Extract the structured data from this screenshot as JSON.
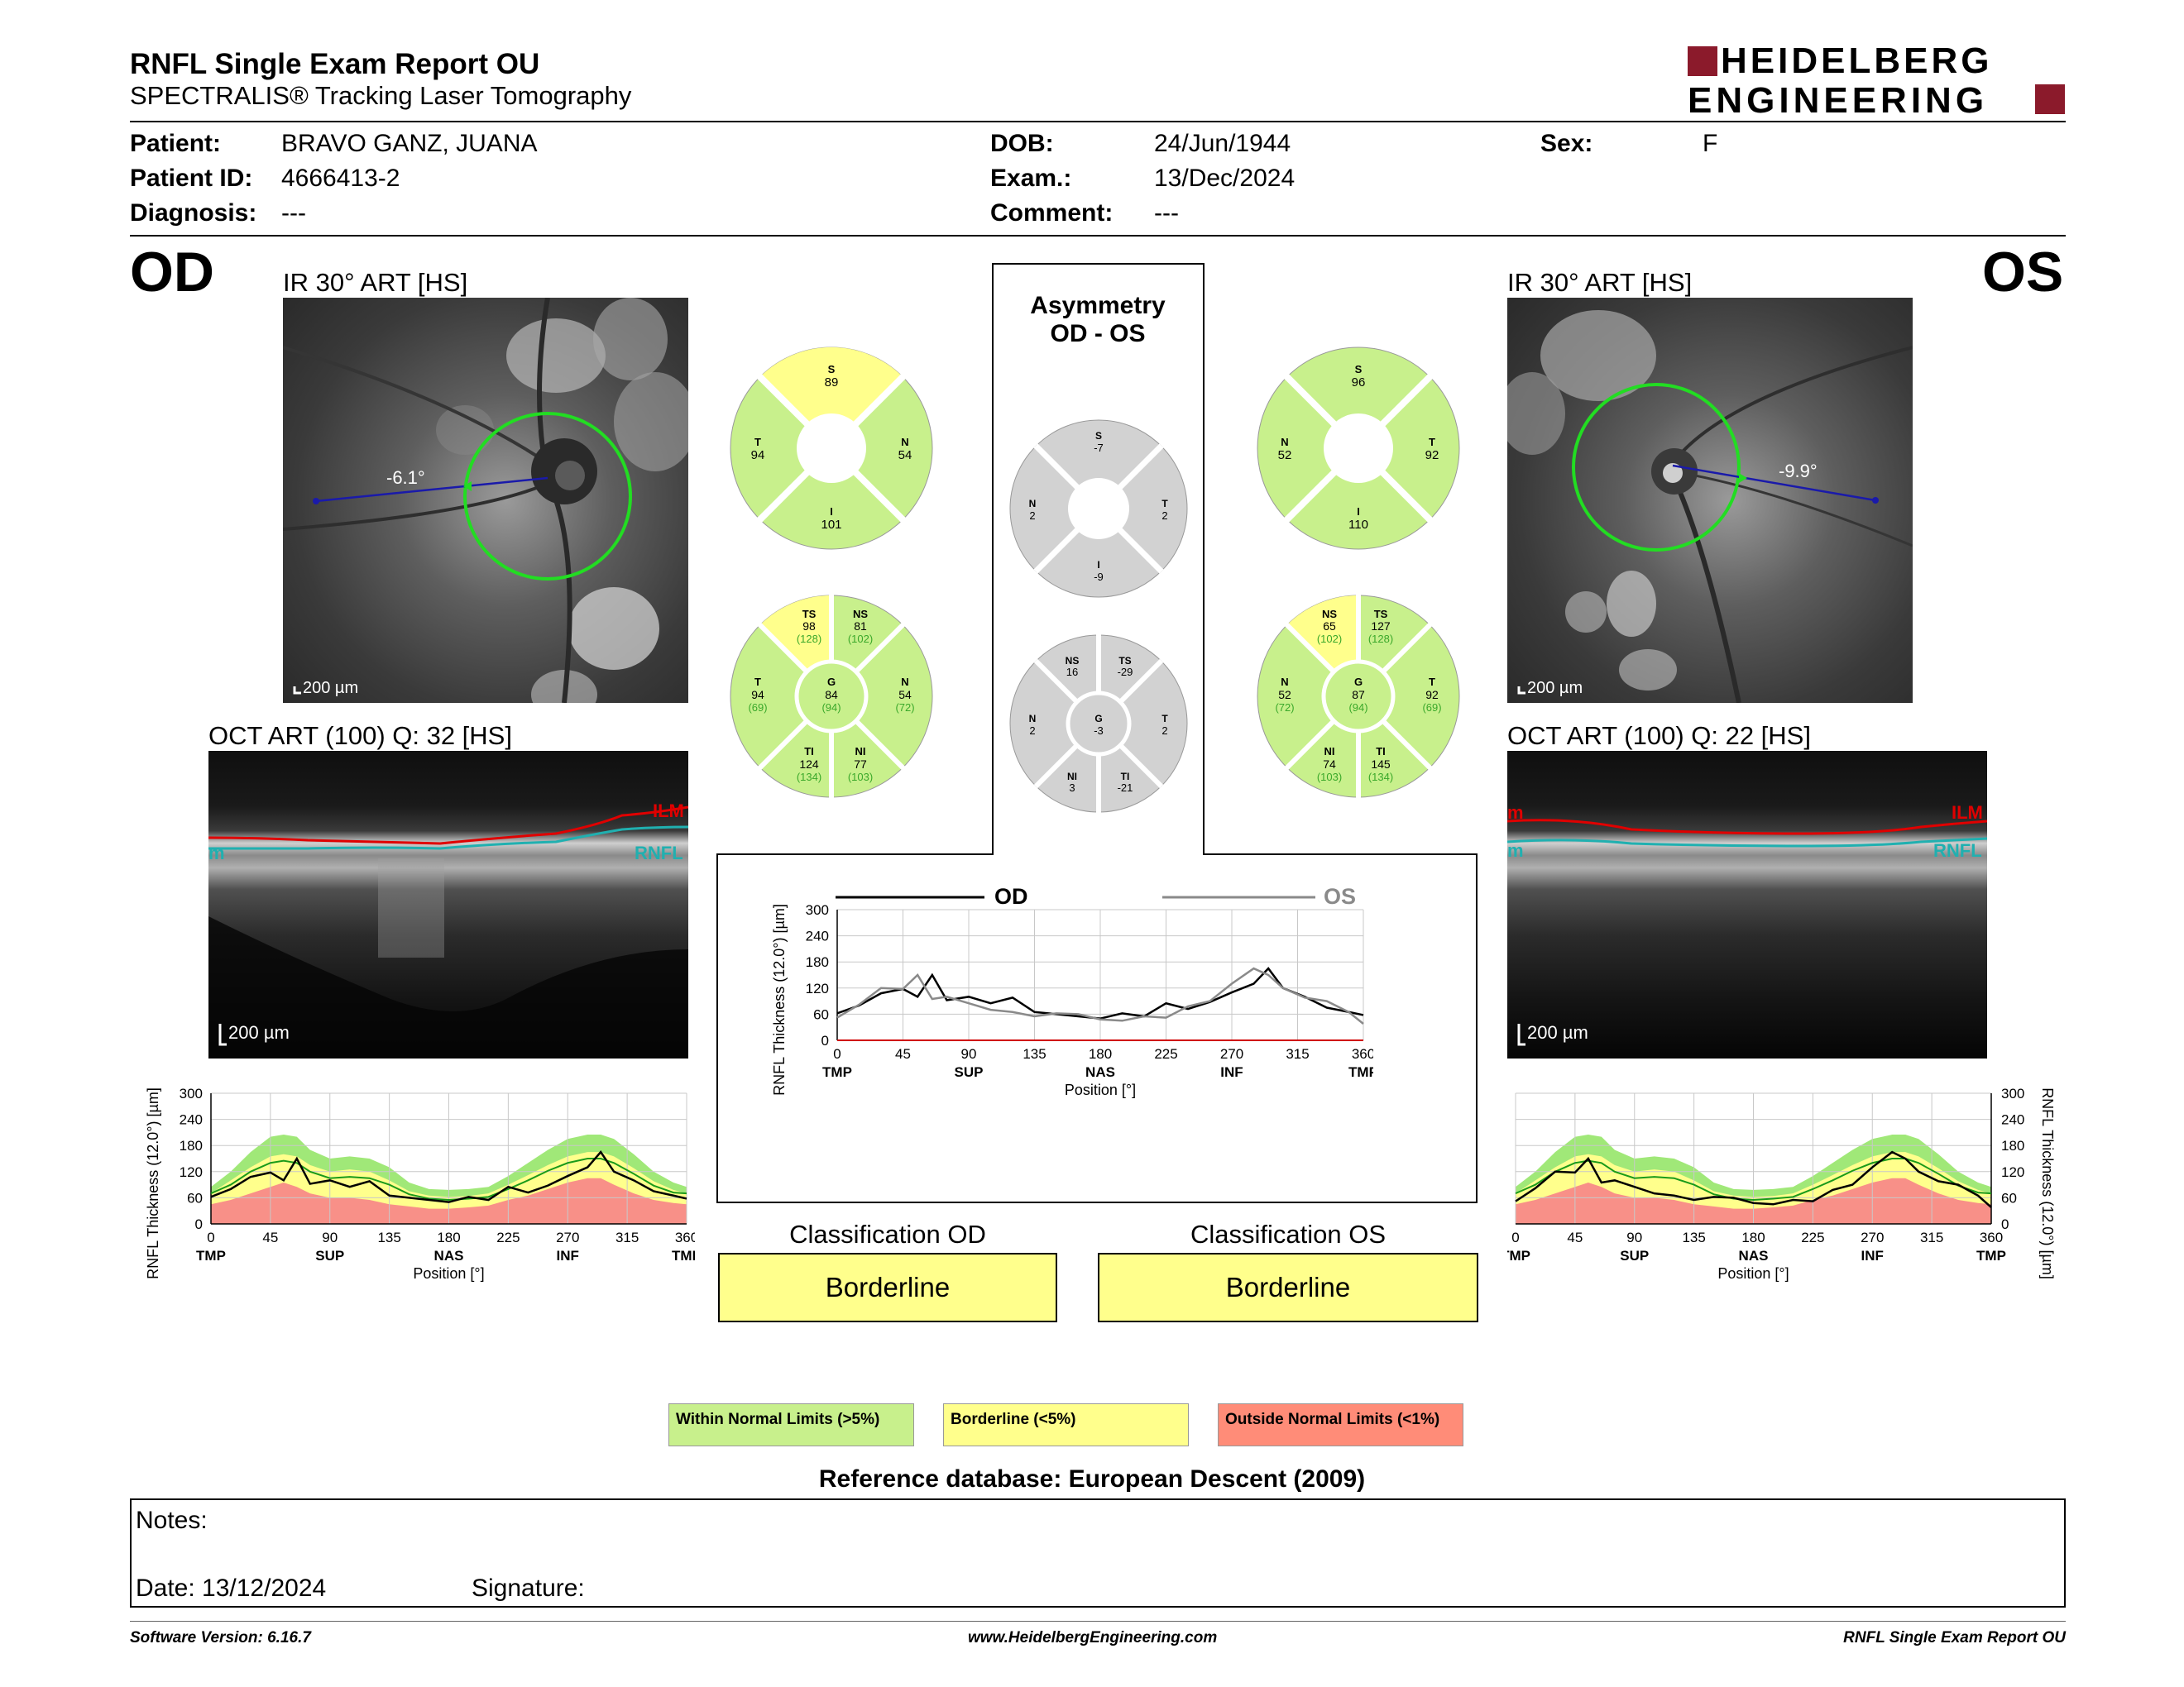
{
  "report": {
    "title": "RNFL Single Exam Report OU",
    "subtitle": "SPECTRALIS® Tracking Laser Tomography",
    "logo_line1": "HEIDELBERG",
    "logo_line2": "ENGINEERING",
    "brand_color": "#8b1a2b"
  },
  "patient": {
    "name_label": "Patient:",
    "name": "BRAVO GANZ, JUANA",
    "id_label": "Patient ID:",
    "id": "4666413-2",
    "diagnosis_label": "Diagnosis:",
    "diagnosis": "---",
    "dob_label": "DOB:",
    "dob": "24/Jun/1944",
    "exam_label": "Exam.:",
    "exam": "13/Dec/2024",
    "comment_label": "Comment:",
    "comment": "---",
    "sex_label": "Sex:",
    "sex": "F"
  },
  "od": {
    "eye": "OD",
    "ir_label": "IR 30° ART [HS]",
    "angle": "-6.1°",
    "ir_scale": "200 µm",
    "oct_label": "OCT ART (100) Q: 32 [HS]",
    "oct_scale": "200 µm",
    "ilm": "ILM",
    "rnfl": "RNFL",
    "rnfl_cut": "m",
    "sectors4": {
      "S": {
        "label": "S",
        "value": "89"
      },
      "T": {
        "label": "T",
        "value": "94"
      },
      "N": {
        "label": "N",
        "value": "54"
      },
      "I": {
        "label": "I",
        "value": "101"
      }
    },
    "sectors6": {
      "TS": {
        "label": "TS",
        "value": "98",
        "ref": "(128)"
      },
      "NS": {
        "label": "NS",
        "value": "81",
        "ref": "(102)"
      },
      "T": {
        "label": "T",
        "value": "94",
        "ref": "(69)"
      },
      "G": {
        "label": "G",
        "value": "84",
        "ref": "(94)"
      },
      "N": {
        "label": "N",
        "value": "54",
        "ref": "(72)"
      },
      "TI": {
        "label": "TI",
        "value": "124",
        "ref": "(134)"
      },
      "NI": {
        "label": "NI",
        "value": "77",
        "ref": "(103)"
      }
    },
    "classification_title": "Classification OD",
    "classification": "Borderline"
  },
  "os": {
    "eye": "OS",
    "ir_label": "IR 30° ART [HS]",
    "angle": "-9.9°",
    "ir_scale": "200 µm",
    "oct_label": "OCT ART (100) Q: 22 [HS]",
    "oct_scale": "200 µm",
    "ilm": "ILM",
    "rnfl": "RNFL",
    "ilm_cut": "m",
    "rnfl_cut": "m",
    "sectors4": {
      "S": {
        "label": "S",
        "value": "96"
      },
      "N": {
        "label": "N",
        "value": "52"
      },
      "T": {
        "label": "T",
        "value": "92"
      },
      "I": {
        "label": "I",
        "value": "110"
      }
    },
    "sectors6": {
      "NS": {
        "label": "NS",
        "value": "65",
        "ref": "(102)"
      },
      "TS": {
        "label": "TS",
        "value": "127",
        "ref": "(128)"
      },
      "N": {
        "label": "N",
        "value": "52",
        "ref": "(72)"
      },
      "G": {
        "label": "G",
        "value": "87",
        "ref": "(94)"
      },
      "T": {
        "label": "T",
        "value": "92",
        "ref": "(69)"
      },
      "NI": {
        "label": "NI",
        "value": "74",
        "ref": "(103)"
      },
      "TI": {
        "label": "TI",
        "value": "145",
        "ref": "(134)"
      }
    },
    "classification_title": "Classification OS",
    "classification": "Borderline"
  },
  "asymmetry": {
    "title_line1": "Asymmetry",
    "title_line2": "OD - OS",
    "sectors4": {
      "S": {
        "label": "S",
        "value": "-7"
      },
      "N": {
        "label": "N",
        "value": "2"
      },
      "T": {
        "label": "T",
        "value": "2"
      },
      "I": {
        "label": "I",
        "value": "-9"
      }
    },
    "sectors6": {
      "NS": {
        "label": "NS",
        "value": "16"
      },
      "TS": {
        "label": "TS",
        "value": "-29"
      },
      "N": {
        "label": "N",
        "value": "2"
      },
      "G": {
        "label": "G",
        "value": "-3"
      },
      "T": {
        "label": "T",
        "value": "2"
      },
      "NI": {
        "label": "NI",
        "value": "3"
      },
      "TI": {
        "label": "TI",
        "value": "-21"
      }
    }
  },
  "colors": {
    "normal": "#c8f08c",
    "borderline": "#ffff8c",
    "outside": "#ff8c78",
    "asym": "#d2d2d2",
    "od_line": "#000000",
    "os_line": "#8a8a8a",
    "band_green": "#a0e878",
    "band_red": "#f89088",
    "ilm_color": "#e00000",
    "rnfl_color": "#20b0b0",
    "circle": "#22dd22",
    "axis_line": "#1a1aaa"
  },
  "chart_data": [
    {
      "type": "line",
      "name": "od_profile",
      "xlabel": "Position [°]",
      "ylabel": "RNFL Thickness (12.0°) [µm]",
      "ylim": [
        0,
        300
      ],
      "xlim": [
        0,
        360
      ],
      "yticks": [
        0,
        60,
        120,
        180,
        240,
        300
      ],
      "xticks": [
        0,
        45,
        90,
        135,
        180,
        225,
        270,
        315,
        360
      ],
      "xsectors": [
        "TMP",
        "SUP",
        "NAS",
        "INF",
        "TMP"
      ],
      "grid": true,
      "x": [
        0,
        15,
        30,
        45,
        55,
        65,
        75,
        90,
        105,
        120,
        135,
        150,
        165,
        180,
        195,
        210,
        225,
        240,
        255,
        270,
        285,
        295,
        305,
        320,
        335,
        350,
        360
      ],
      "od": [
        62,
        80,
        108,
        118,
        100,
        150,
        92,
        100,
        85,
        98,
        65,
        60,
        55,
        50,
        62,
        55,
        85,
        72,
        88,
        110,
        130,
        165,
        120,
        100,
        75,
        65,
        58
      ],
      "normal_upper": [
        85,
        120,
        165,
        200,
        205,
        200,
        170,
        150,
        155,
        150,
        130,
        95,
        80,
        78,
        80,
        85,
        110,
        140,
        170,
        195,
        205,
        205,
        195,
        160,
        120,
        95,
        85
      ],
      "borderline_upper": [
        70,
        100,
        130,
        155,
        160,
        155,
        135,
        120,
        125,
        120,
        100,
        75,
        65,
        62,
        64,
        70,
        90,
        112,
        135,
        155,
        165,
        165,
        155,
        128,
        98,
        78,
        70
      ],
      "outside_upper": [
        45,
        55,
        70,
        85,
        95,
        85,
        70,
        60,
        60,
        55,
        45,
        40,
        35,
        35,
        38,
        42,
        55,
        65,
        80,
        95,
        105,
        105,
        90,
        70,
        55,
        48,
        45
      ],
      "mean": [
        70,
        90,
        120,
        140,
        145,
        140,
        120,
        105,
        108,
        105,
        90,
        68,
        58,
        55,
        58,
        62,
        80,
        100,
        122,
        140,
        150,
        150,
        140,
        115,
        88,
        72,
        70
      ]
    },
    {
      "type": "line",
      "name": "os_profile",
      "xlabel": "Position [°]",
      "ylabel": "RNFL Thickness (12.0°) [µm]",
      "ylim": [
        0,
        300
      ],
      "xlim": [
        0,
        360
      ],
      "yticks": [
        0,
        60,
        120,
        180,
        240,
        300
      ],
      "xticks": [
        0,
        45,
        90,
        135,
        180,
        225,
        270,
        315,
        360
      ],
      "xsectors": [
        "TMP",
        "SUP",
        "NAS",
        "INF",
        "TMP"
      ],
      "grid": true,
      "x": [
        0,
        15,
        30,
        45,
        55,
        65,
        75,
        90,
        105,
        120,
        135,
        150,
        165,
        180,
        195,
        210,
        225,
        240,
        255,
        270,
        285,
        295,
        305,
        320,
        335,
        350,
        360
      ],
      "os": [
        52,
        82,
        120,
        118,
        150,
        95,
        100,
        85,
        70,
        65,
        55,
        62,
        60,
        48,
        45,
        55,
        52,
        78,
        90,
        130,
        165,
        150,
        120,
        98,
        90,
        65,
        38
      ],
      "normal_upper": [
        85,
        120,
        165,
        200,
        205,
        200,
        170,
        150,
        155,
        150,
        130,
        95,
        80,
        78,
        80,
        85,
        110,
        140,
        170,
        195,
        205,
        205,
        195,
        160,
        120,
        95,
        85
      ],
      "borderline_upper": [
        70,
        100,
        130,
        155,
        160,
        155,
        135,
        120,
        125,
        120,
        100,
        75,
        65,
        62,
        64,
        70,
        90,
        112,
        135,
        155,
        165,
        165,
        155,
        128,
        98,
        78,
        70
      ],
      "outside_upper": [
        45,
        55,
        70,
        85,
        95,
        85,
        70,
        60,
        60,
        55,
        45,
        40,
        35,
        35,
        38,
        42,
        55,
        65,
        80,
        95,
        105,
        105,
        90,
        70,
        55,
        48,
        45
      ],
      "mean": [
        70,
        90,
        120,
        140,
        145,
        140,
        120,
        105,
        108,
        105,
        90,
        68,
        58,
        55,
        58,
        62,
        80,
        100,
        122,
        140,
        150,
        150,
        140,
        115,
        88,
        72,
        70
      ]
    },
    {
      "type": "line",
      "name": "asymmetry_profile",
      "xlabel": "Position [°]",
      "ylabel": "RNFL Thickness (12.0°) [µm]",
      "ylim": [
        0,
        300
      ],
      "xlim": [
        0,
        360
      ],
      "yticks": [
        0,
        60,
        120,
        180,
        240,
        300
      ],
      "xticks": [
        0,
        45,
        90,
        135,
        180,
        225,
        270,
        315,
        360
      ],
      "xsectors": [
        "TMP",
        "SUP",
        "NAS",
        "INF",
        "TMP"
      ],
      "grid": true,
      "legend": [
        "OD",
        "OS"
      ],
      "x": [
        0,
        15,
        30,
        45,
        55,
        65,
        75,
        90,
        105,
        120,
        135,
        150,
        165,
        180,
        195,
        210,
        225,
        240,
        255,
        270,
        285,
        295,
        305,
        320,
        335,
        350,
        360
      ],
      "series": [
        {
          "name": "OD",
          "values": [
            62,
            80,
            108,
            118,
            100,
            150,
            92,
            100,
            85,
            98,
            65,
            60,
            55,
            50,
            62,
            55,
            85,
            72,
            88,
            110,
            130,
            165,
            120,
            100,
            75,
            65,
            58
          ]
        },
        {
          "name": "OS",
          "values": [
            52,
            82,
            120,
            118,
            150,
            95,
            100,
            85,
            70,
            65,
            55,
            62,
            60,
            48,
            45,
            55,
            52,
            78,
            90,
            130,
            165,
            150,
            120,
            98,
            90,
            65,
            38
          ]
        }
      ]
    }
  ],
  "legend": {
    "normal": "Within Normal Limits (>5%)",
    "borderline": "Borderline (<5%)",
    "outside": "Outside Normal Limits (<1%)"
  },
  "reference": "Reference database: European Descent (2009)",
  "notes": {
    "notes_label": "Notes:",
    "date_label": "Date: 13/12/2024",
    "signature_label": "Signature:"
  },
  "footer": {
    "software": "Software Version: 6.16.7",
    "website": "www.HeidelbergEngineering.com",
    "report": "RNFL Single Exam Report OU"
  }
}
